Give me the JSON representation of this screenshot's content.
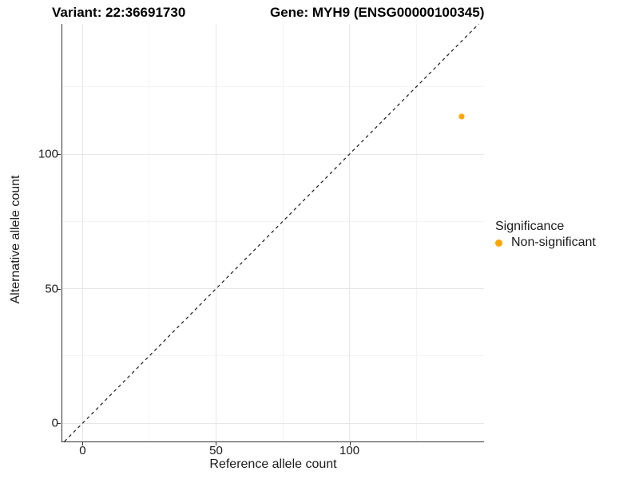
{
  "header": {
    "title_variant": "Variant: 22:36691730",
    "title_gene": "Gene: MYH9 (ENSG00000100345)"
  },
  "chart_data": {
    "type": "scatter",
    "title": "Variant: 22:36691730    Gene: MYH9 (ENSG00000100345)",
    "xlabel": "Reference allele count",
    "ylabel": "Alternative allele count",
    "xlim": [
      -7.6,
      150.4
    ],
    "ylim": [
      -6.8,
      148.4
    ],
    "x_major_ticks": [
      0,
      50,
      100
    ],
    "y_major_ticks": [
      0,
      50,
      100
    ],
    "x_minor_gridlines": [
      25,
      75,
      125
    ],
    "y_minor_gridlines": [
      25,
      75,
      125
    ],
    "grid": true,
    "points": [
      {
        "x": 142,
        "y": 114,
        "series": "Non-significant"
      }
    ],
    "reference_line": {
      "type": "identity",
      "slope": 1,
      "intercept": 0,
      "linetype": "dashed",
      "color": "#1a1a1a"
    },
    "legend": {
      "title": "Significance",
      "position": "right",
      "items": [
        {
          "label": "Non-significant",
          "color": "#FFA500"
        }
      ]
    },
    "colors": {
      "point": "#FFA500",
      "major_grid": "#E7E7E7",
      "minor_grid": "#F3F3F3",
      "axis_line": "#333333",
      "text": "#1A1A1A"
    }
  }
}
